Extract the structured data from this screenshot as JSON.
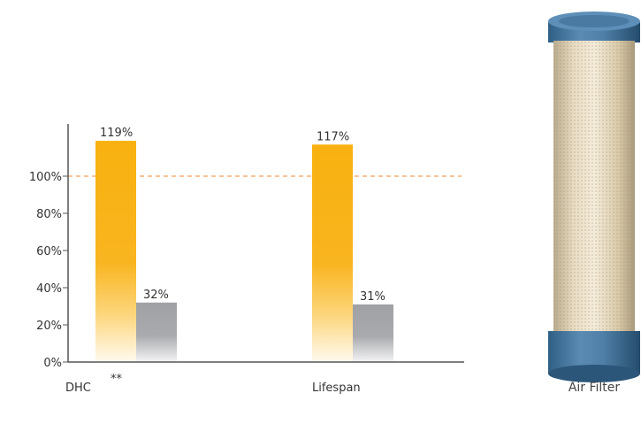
{
  "chart_data": {
    "type": "bar",
    "categories": [
      "DHC",
      "Lifespan"
    ],
    "series": [
      {
        "values": [
          119,
          117
        ]
      },
      {
        "values": [
          32,
          31
        ]
      }
    ],
    "value_labels": [
      [
        "119%",
        "117%"
      ],
      [
        "32%",
        "31%"
      ]
    ],
    "y_ticks": [
      "0%",
      "20%",
      "40%",
      "60%",
      "80%",
      "100%"
    ],
    "ylim": [
      0,
      120
    ],
    "reference_line": {
      "value": 100,
      "style": "dashed",
      "color": "#f5a05a"
    },
    "category_note": "**",
    "colors": {
      "primary": "#f7b31b",
      "secondary": "#9c9ea2",
      "axis": "#555555"
    }
  },
  "product": {
    "caption": "Air Filter",
    "icon": "air-filter-cartridge-image"
  }
}
